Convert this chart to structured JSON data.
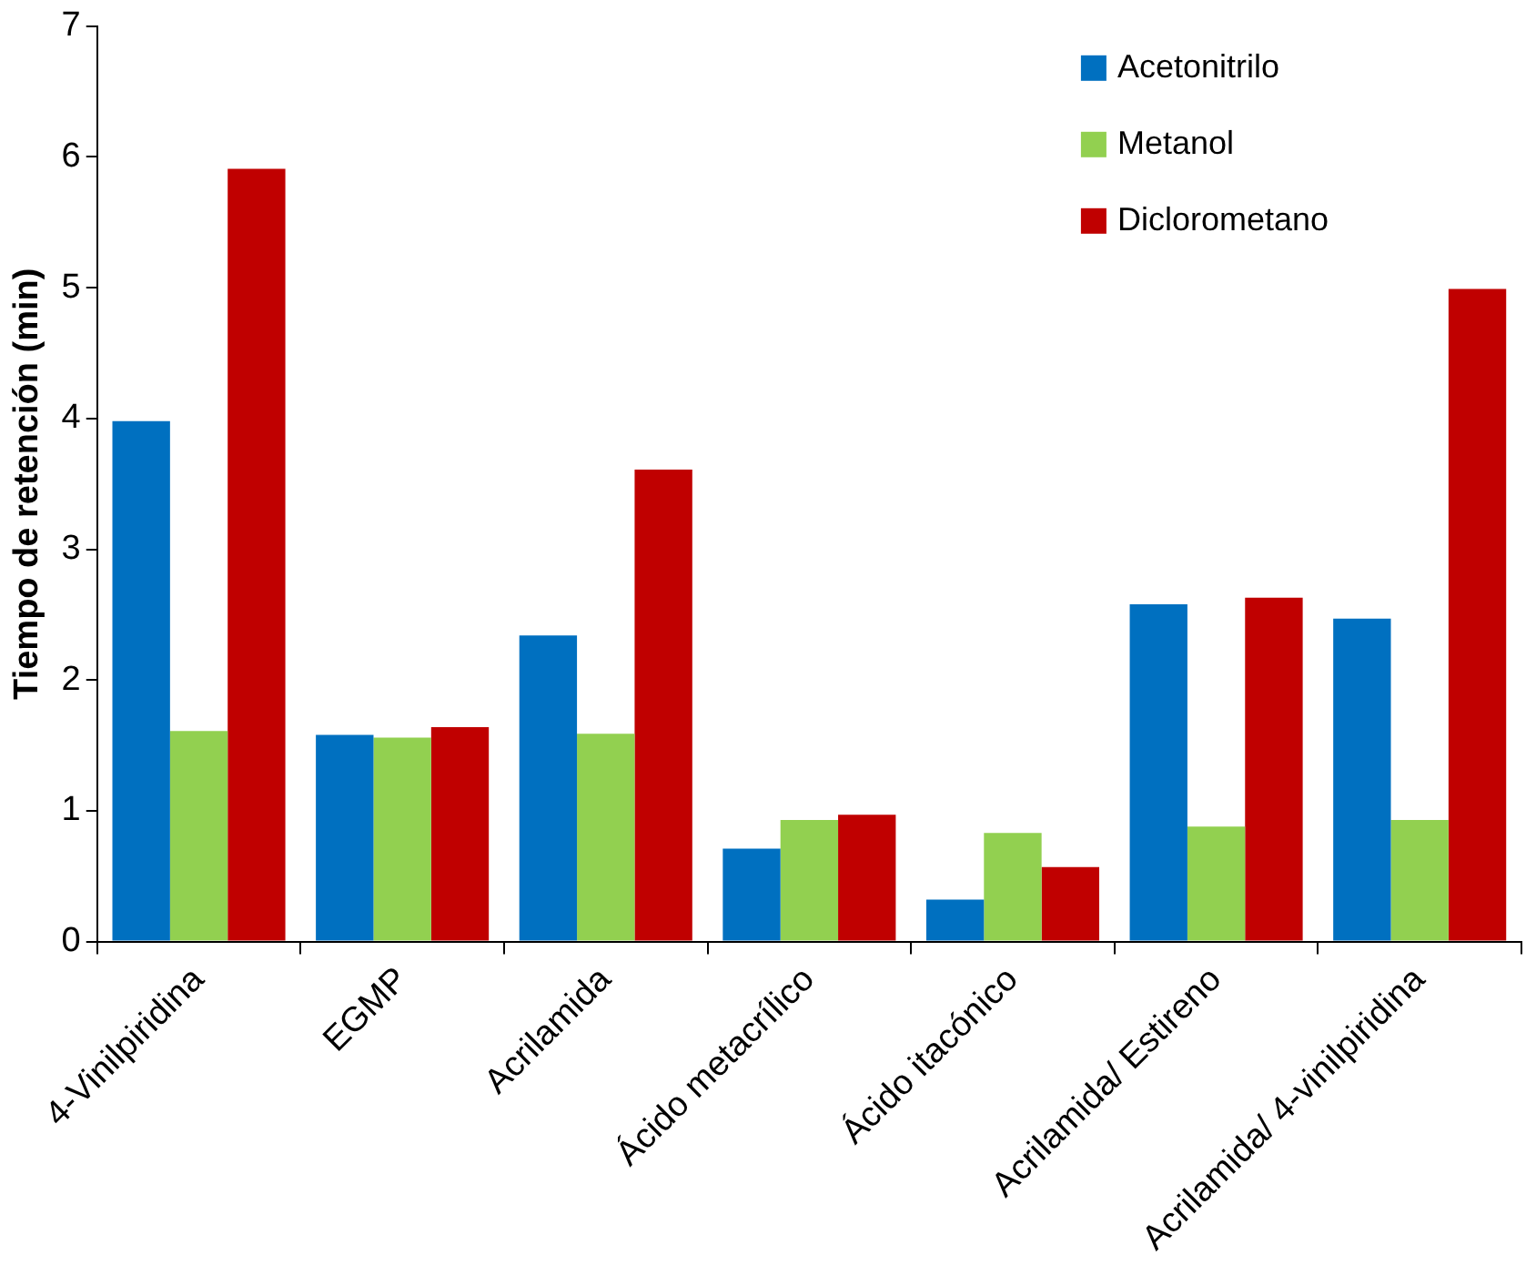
{
  "chart_data": {
    "type": "bar",
    "ylabel": "Tiempo de retención (min)",
    "categories": [
      "4-Vinilpiridina",
      "EGMP",
      "Acrilamida",
      "Ácido metacrílico",
      "Ácido itacónico",
      "Acrilamida/ Estireno",
      "Acrilamida/ 4-vinilpiridina"
    ],
    "series": [
      {
        "name": "Acetonitrilo",
        "color": "#0070c0",
        "values": [
          3.98,
          1.58,
          2.34,
          0.71,
          0.32,
          2.58,
          2.47
        ]
      },
      {
        "name": "Metanol",
        "color": "#92d050",
        "values": [
          1.61,
          1.56,
          1.59,
          0.93,
          0.83,
          0.88,
          0.93
        ]
      },
      {
        "name": "Diclorometano",
        "color": "#c00000",
        "values": [
          5.91,
          1.64,
          3.61,
          0.97,
          0.57,
          2.63,
          4.99
        ]
      }
    ],
    "ylim": [
      0,
      7
    ],
    "yticks": [
      0,
      1,
      2,
      3,
      4,
      5,
      6,
      7
    ],
    "grid": false,
    "legend": "top right"
  }
}
